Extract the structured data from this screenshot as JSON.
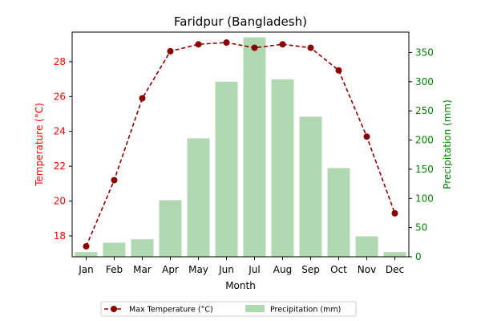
{
  "chart_data": {
    "type": "bar+line",
    "title": "Faridpur (Bangladesh)",
    "xlabel": "Month",
    "ylabel_left": "Temperature (°C)",
    "ylabel_right": "Precipitation (mm)",
    "categories": [
      "Jan",
      "Feb",
      "Mar",
      "Apr",
      "May",
      "Jun",
      "Jul",
      "Aug",
      "Sep",
      "Oct",
      "Nov",
      "Dec"
    ],
    "series": [
      {
        "name": "Max Temperature (°C)",
        "kind": "line",
        "axis": "left",
        "values": [
          17.4,
          21.2,
          25.9,
          28.6,
          29.0,
          29.1,
          28.8,
          29.0,
          28.8,
          27.5,
          23.7,
          19.3
        ],
        "color": "#8b0000"
      },
      {
        "name": "Precipitation (mm)",
        "kind": "bar",
        "axis": "right",
        "values": [
          8,
          24,
          30,
          97,
          203,
          300,
          376,
          304,
          240,
          152,
          35,
          8
        ],
        "color": "#b0d9b1"
      }
    ],
    "ylim_left": [
      16.8,
      29.7
    ],
    "ylim_right": [
      0,
      385
    ],
    "yticks_left": [
      18,
      20,
      22,
      24,
      26,
      28
    ],
    "yticks_right": [
      0,
      50,
      100,
      150,
      200,
      250,
      300,
      350
    ],
    "left_axis_color": "#ff0000",
    "right_axis_color": "#008000",
    "grid": false,
    "legend_position": "bottom-center"
  }
}
